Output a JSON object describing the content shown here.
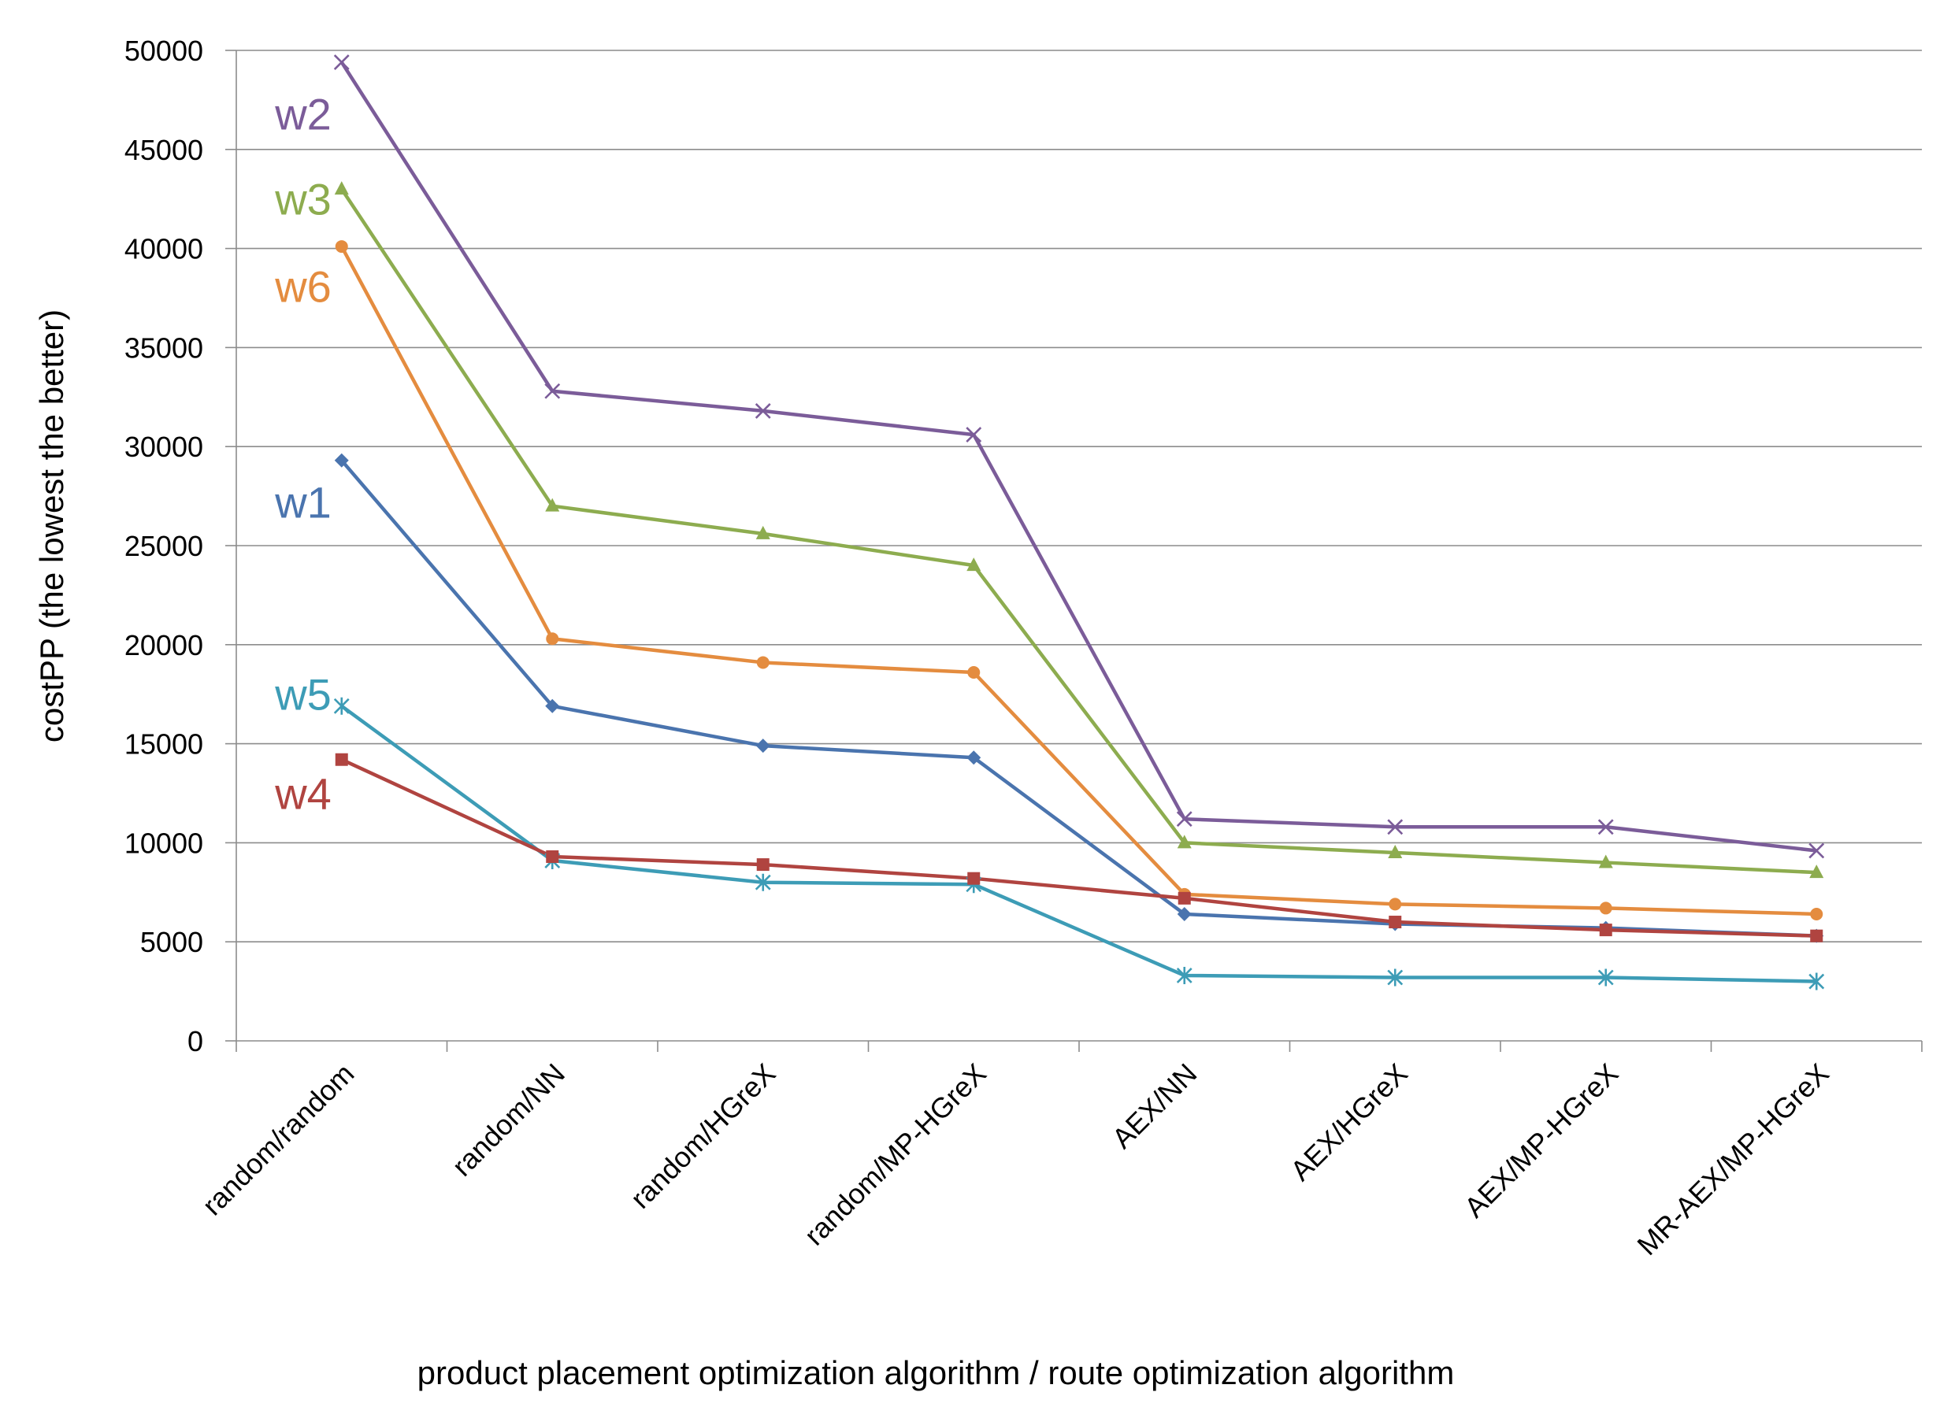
{
  "chart_data": {
    "type": "line",
    "title": "",
    "xlabel": "product placement optimization algorithm / route optimization algorithm",
    "ylabel": "costPP  (the lowest the better)",
    "ylim": [
      0,
      50000
    ],
    "yticks": [
      0,
      5000,
      10000,
      15000,
      20000,
      25000,
      30000,
      35000,
      40000,
      45000,
      50000
    ],
    "ytick_labels": [
      "0",
      "5000",
      "10000",
      "15000",
      "20000",
      "25000",
      "30000",
      "35000",
      "40000",
      "45000",
      "50000"
    ],
    "grid": true,
    "categories": [
      "random/random",
      "random/NN",
      "random/HGreX",
      "random/MP-HGreX",
      "AEX/NN",
      "AEX/HGreX",
      "AEX/MP-HGreX",
      "MR-AEX/MP-HGreX"
    ],
    "series": [
      {
        "name": "w2",
        "color": "#7B5C99",
        "marker": "x",
        "values": [
          49400,
          32800,
          31800,
          30600,
          11200,
          10800,
          10800,
          9600
        ]
      },
      {
        "name": "w3",
        "color": "#8DAC4F",
        "marker": "triangle",
        "values": [
          43000,
          27000,
          25600,
          24000,
          10000,
          9500,
          9000,
          8500
        ]
      },
      {
        "name": "w6",
        "color": "#E48C3F",
        "marker": "circle",
        "values": [
          40100,
          20300,
          19100,
          18600,
          7400,
          6900,
          6700,
          6400
        ]
      },
      {
        "name": "w1",
        "color": "#4A74AE",
        "marker": "diamond",
        "values": [
          29300,
          16900,
          14900,
          14300,
          6400,
          5900,
          5700,
          5300
        ]
      },
      {
        "name": "w5",
        "color": "#3D9CB6",
        "marker": "star",
        "values": [
          16900,
          9100,
          8000,
          7900,
          3300,
          3200,
          3200,
          3000
        ]
      },
      {
        "name": "w4",
        "color": "#B04440",
        "marker": "square",
        "values": [
          14200,
          9300,
          8900,
          8200,
          7200,
          6000,
          5600,
          5300
        ]
      }
    ],
    "annotations": [
      {
        "text": "w2",
        "series": "w2",
        "near_value": 46800
      },
      {
        "text": "w3",
        "series": "w3",
        "near_value": 42500
      },
      {
        "text": "w6",
        "series": "w6",
        "near_value": 38100
      },
      {
        "text": "w1",
        "series": "w1",
        "near_value": 27200
      },
      {
        "text": "w5",
        "series": "w5",
        "near_value": 17500
      },
      {
        "text": "w4",
        "series": "w4",
        "near_value": 12500
      }
    ]
  }
}
